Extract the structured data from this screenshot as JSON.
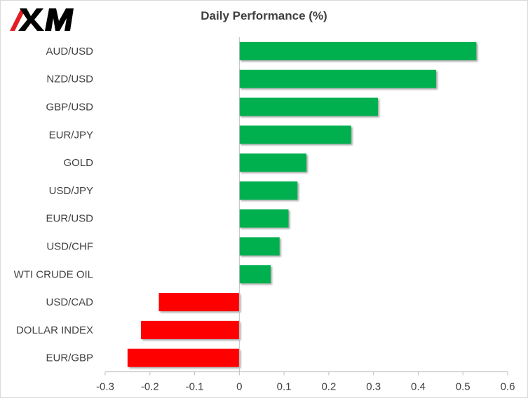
{
  "chart_data": {
    "type": "bar",
    "orientation": "horizontal",
    "title": "Daily Performance  (%)",
    "categories": [
      "AUD/USD",
      "NZD/USD",
      "GBP/USD",
      "EUR/JPY",
      "GOLD",
      "USD/JPY",
      "EUR/USD",
      "USD/CHF",
      "WTI CRUDE OIL",
      "USD/CAD",
      "DOLLAR INDEX",
      "EUR/GBP"
    ],
    "values": [
      0.53,
      0.44,
      0.31,
      0.25,
      0.15,
      0.13,
      0.11,
      0.09,
      0.07,
      -0.18,
      -0.22,
      -0.25
    ],
    "xlim": [
      -0.3,
      0.6
    ],
    "xticks": [
      "-0.3",
      "-0.2",
      "-0.1",
      "0",
      "0.1",
      "0.2",
      "0.3",
      "0.4",
      "0.5",
      "0.6"
    ],
    "xlabel": "",
    "ylabel": "",
    "grid": false,
    "legend": "none",
    "colors": {
      "positive": "#00b050",
      "negative": "#ff0000",
      "axis": "#bfbfbf",
      "text": "#404040"
    }
  },
  "logo": {
    "text": "XM",
    "colors": {
      "slash": "#e31e24",
      "letters": "#000000"
    }
  }
}
